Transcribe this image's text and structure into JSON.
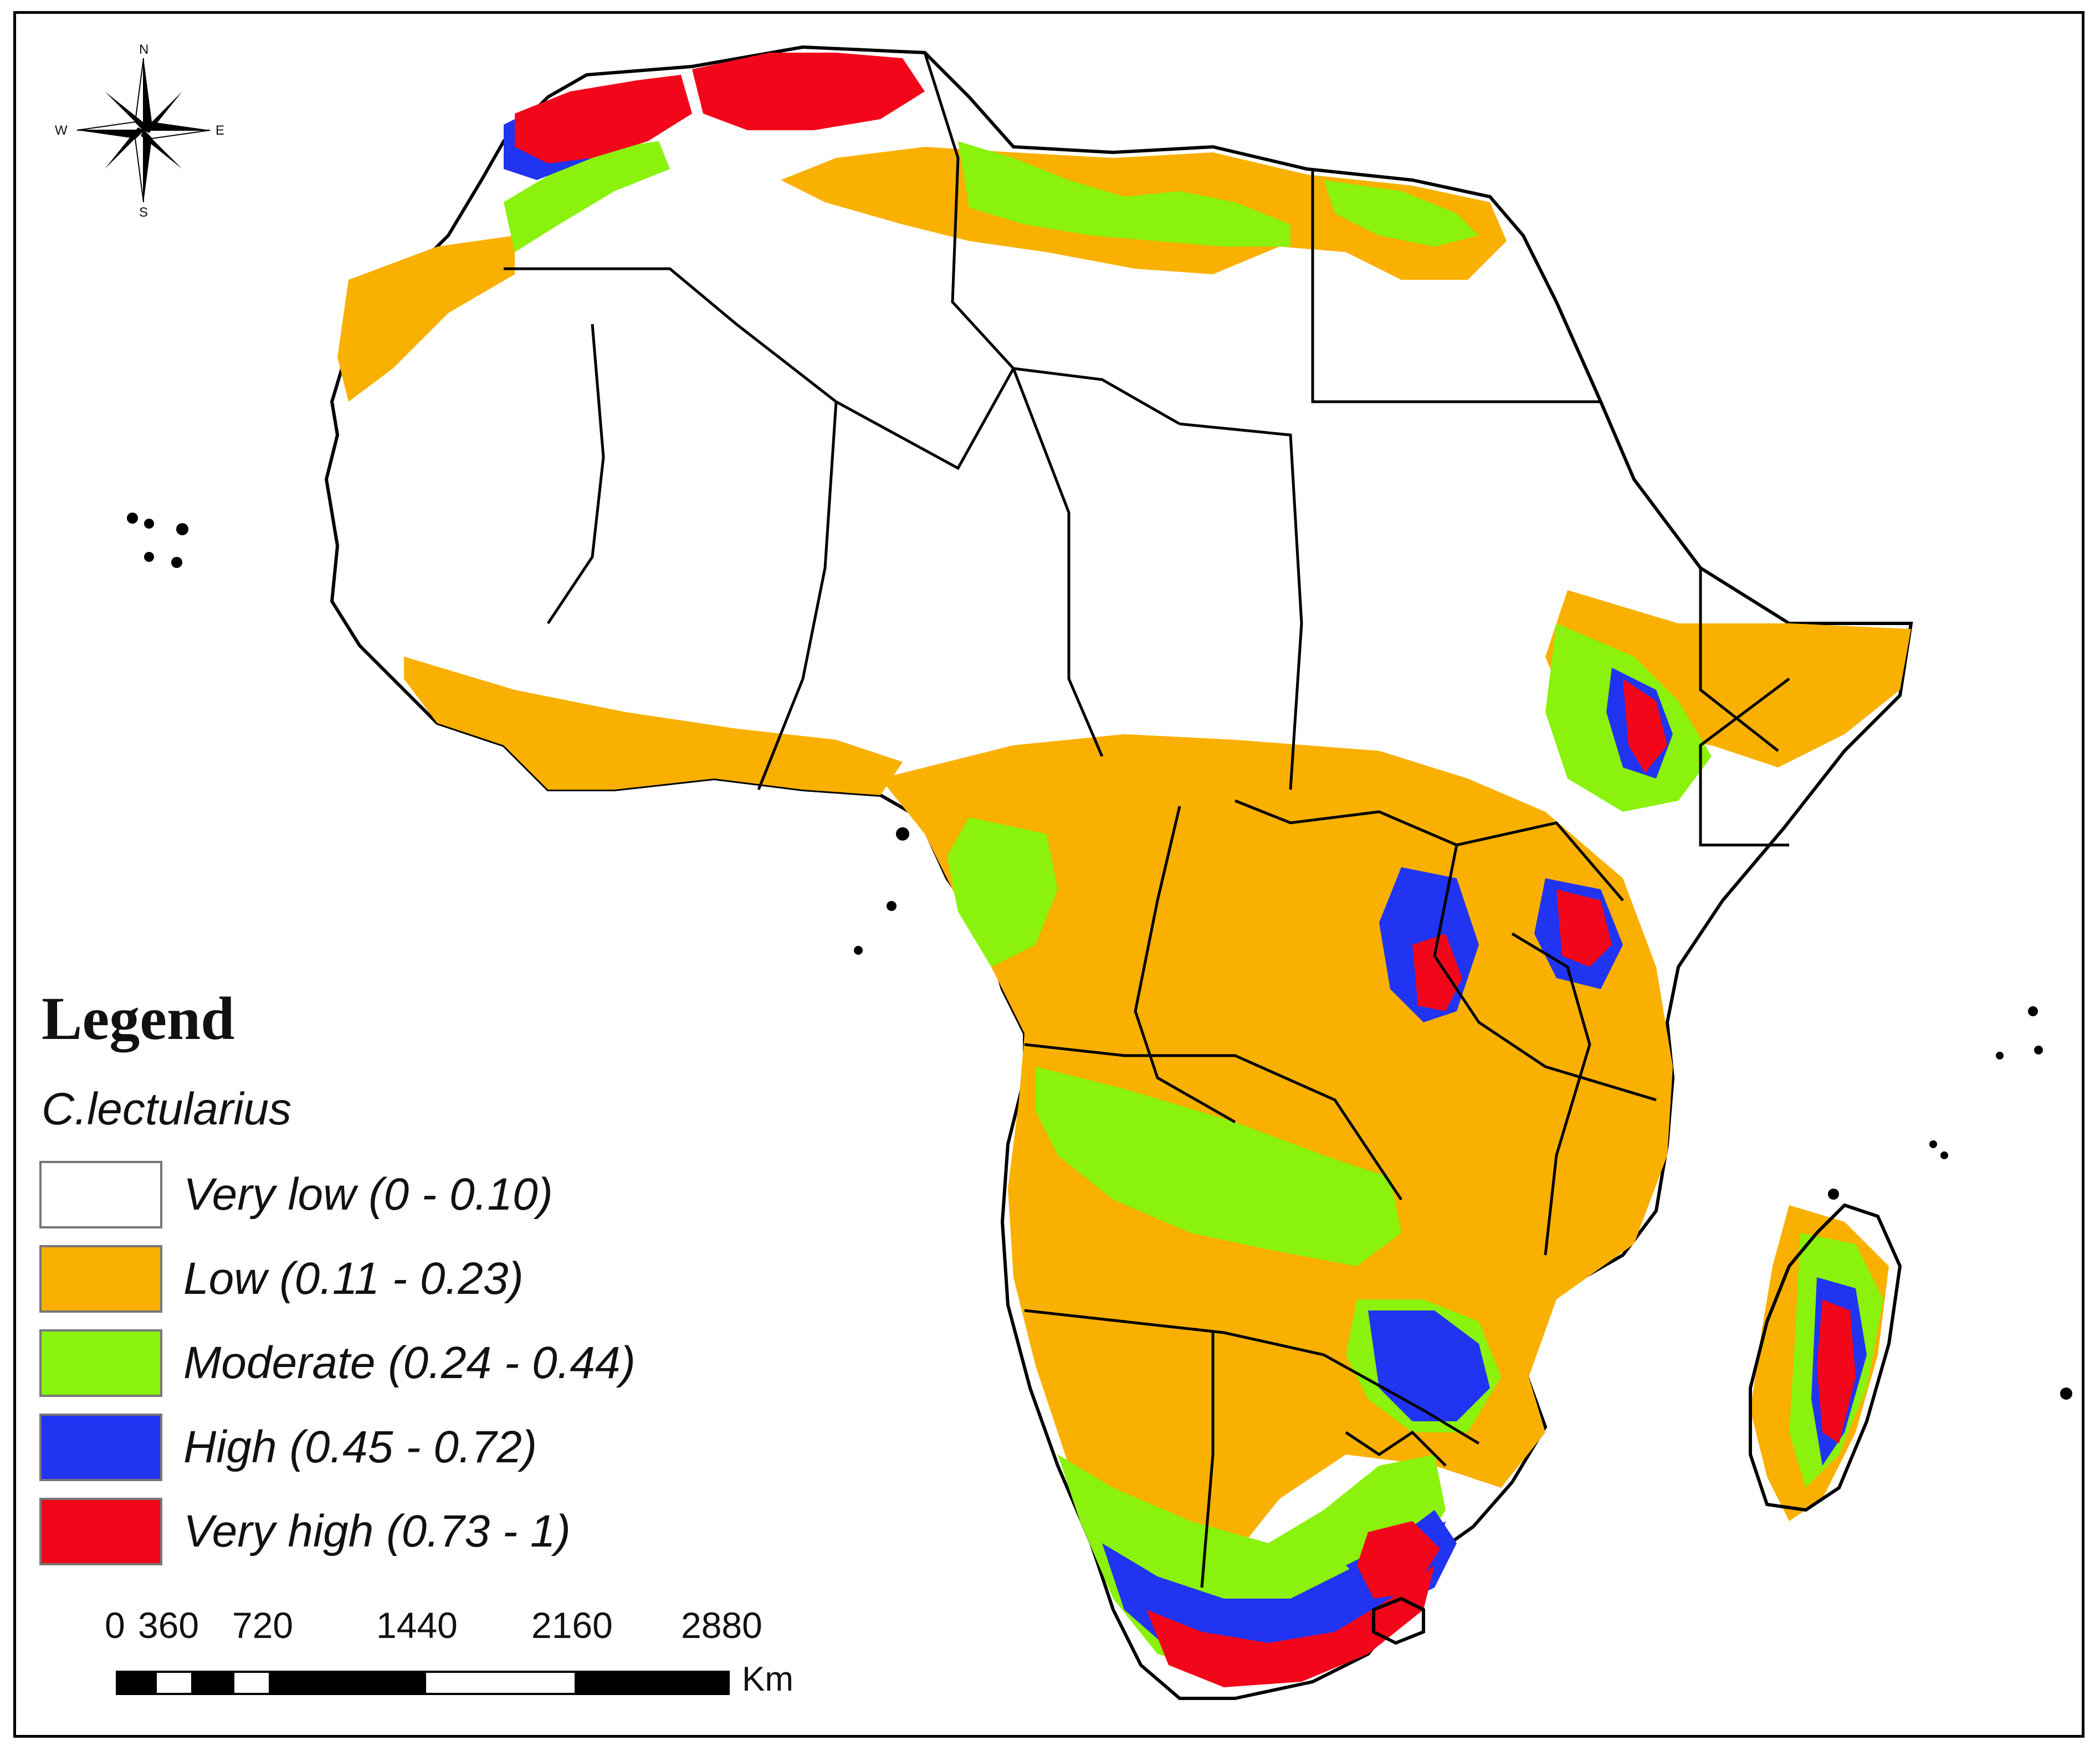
{
  "legend": {
    "title": "Legend",
    "species": "C.lectularius",
    "classes": [
      {
        "label": "Very low (0 - 0.10)",
        "color": "#ffffff"
      },
      {
        "label": "Low (0.11 - 0.23)",
        "color": "#f9b000"
      },
      {
        "label": "Moderate (0.24 - 0.44)",
        "color": "#8af20c"
      },
      {
        "label": "High (0.45 - 0.72)",
        "color": "#2034f2"
      },
      {
        "label": "Very high (0.73 - 1)",
        "color": "#f2071a"
      }
    ]
  },
  "scale_bar": {
    "ticks": [
      "0",
      "360",
      "720",
      "1440",
      "2160",
      "2880"
    ],
    "unit": "Km"
  },
  "compass": {
    "north": "N",
    "south": "S",
    "east": "E",
    "west": "W"
  },
  "colors": {
    "border": "#000000",
    "background": "#ffffff"
  }
}
